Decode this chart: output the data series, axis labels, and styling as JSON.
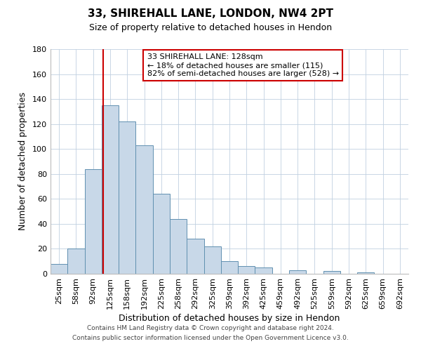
{
  "title": "33, SHIREHALL LANE, LONDON, NW4 2PT",
  "subtitle": "Size of property relative to detached houses in Hendon",
  "xlabel": "Distribution of detached houses by size in Hendon",
  "ylabel": "Number of detached properties",
  "bar_labels": [
    "25sqm",
    "58sqm",
    "92sqm",
    "125sqm",
    "158sqm",
    "192sqm",
    "225sqm",
    "258sqm",
    "292sqm",
    "325sqm",
    "359sqm",
    "392sqm",
    "425sqm",
    "459sqm",
    "492sqm",
    "525sqm",
    "559sqm",
    "592sqm",
    "625sqm",
    "659sqm",
    "692sqm"
  ],
  "bar_values": [
    8,
    20,
    84,
    135,
    122,
    103,
    64,
    44,
    28,
    22,
    10,
    6,
    5,
    0,
    3,
    0,
    2,
    0,
    1,
    0,
    0
  ],
  "bar_color": "#c8d8e8",
  "bar_edge_color": "#6090b0",
  "vline_color": "#cc0000",
  "vline_index": 3,
  "ylim": [
    0,
    180
  ],
  "yticks": [
    0,
    20,
    40,
    60,
    80,
    100,
    120,
    140,
    160,
    180
  ],
  "annotation_line1": "33 SHIREHALL LANE: 128sqm",
  "annotation_line2": "← 18% of detached houses are smaller (115)",
  "annotation_line3": "82% of semi-detached houses are larger (528) →",
  "annotation_box_color": "#cc0000",
  "footnote1": "Contains HM Land Registry data © Crown copyright and database right 2024.",
  "footnote2": "Contains public sector information licensed under the Open Government Licence v3.0.",
  "background_color": "#ffffff",
  "grid_color": "#c0d0e0",
  "title_fontsize": 11,
  "subtitle_fontsize": 9,
  "annotation_fontsize": 8,
  "axis_label_fontsize": 9,
  "tick_fontsize": 8
}
